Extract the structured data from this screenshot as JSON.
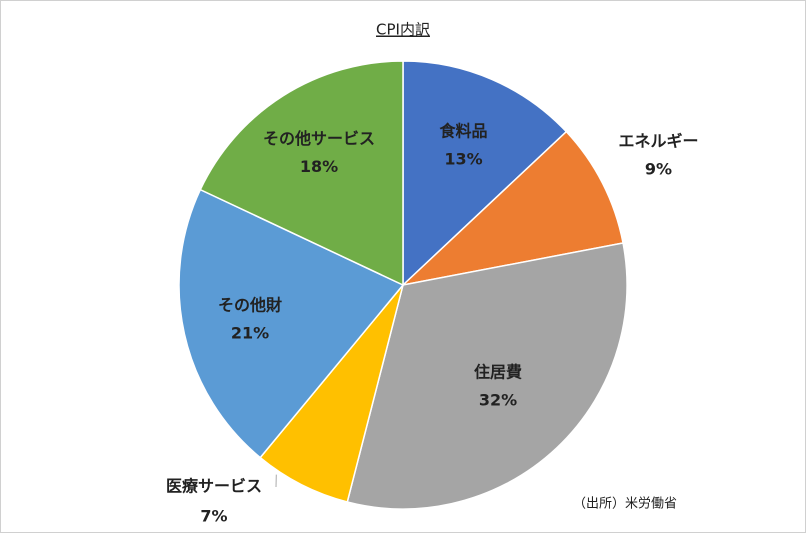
{
  "chart_data": {
    "type": "pie",
    "title": "CPI内訳",
    "categories": [
      "食料品",
      "エネルギー",
      "住居費",
      "医療サービス",
      "その他財",
      "その他サービス"
    ],
    "values": [
      13,
      9,
      32,
      7,
      21,
      18
    ],
    "value_labels": [
      "13%",
      "9%",
      "32%",
      "7%",
      "21%",
      "18%"
    ],
    "colors": [
      "#4472c4",
      "#ed7d31",
      "#a5a5a5",
      "#ffc000",
      "#5b9bd5",
      "#70ad47"
    ],
    "label_colors": [
      "#222222",
      "#ff0000",
      "#222222",
      "#222222",
      "#222222",
      "#222222"
    ],
    "source": "（出所）米労働省"
  }
}
